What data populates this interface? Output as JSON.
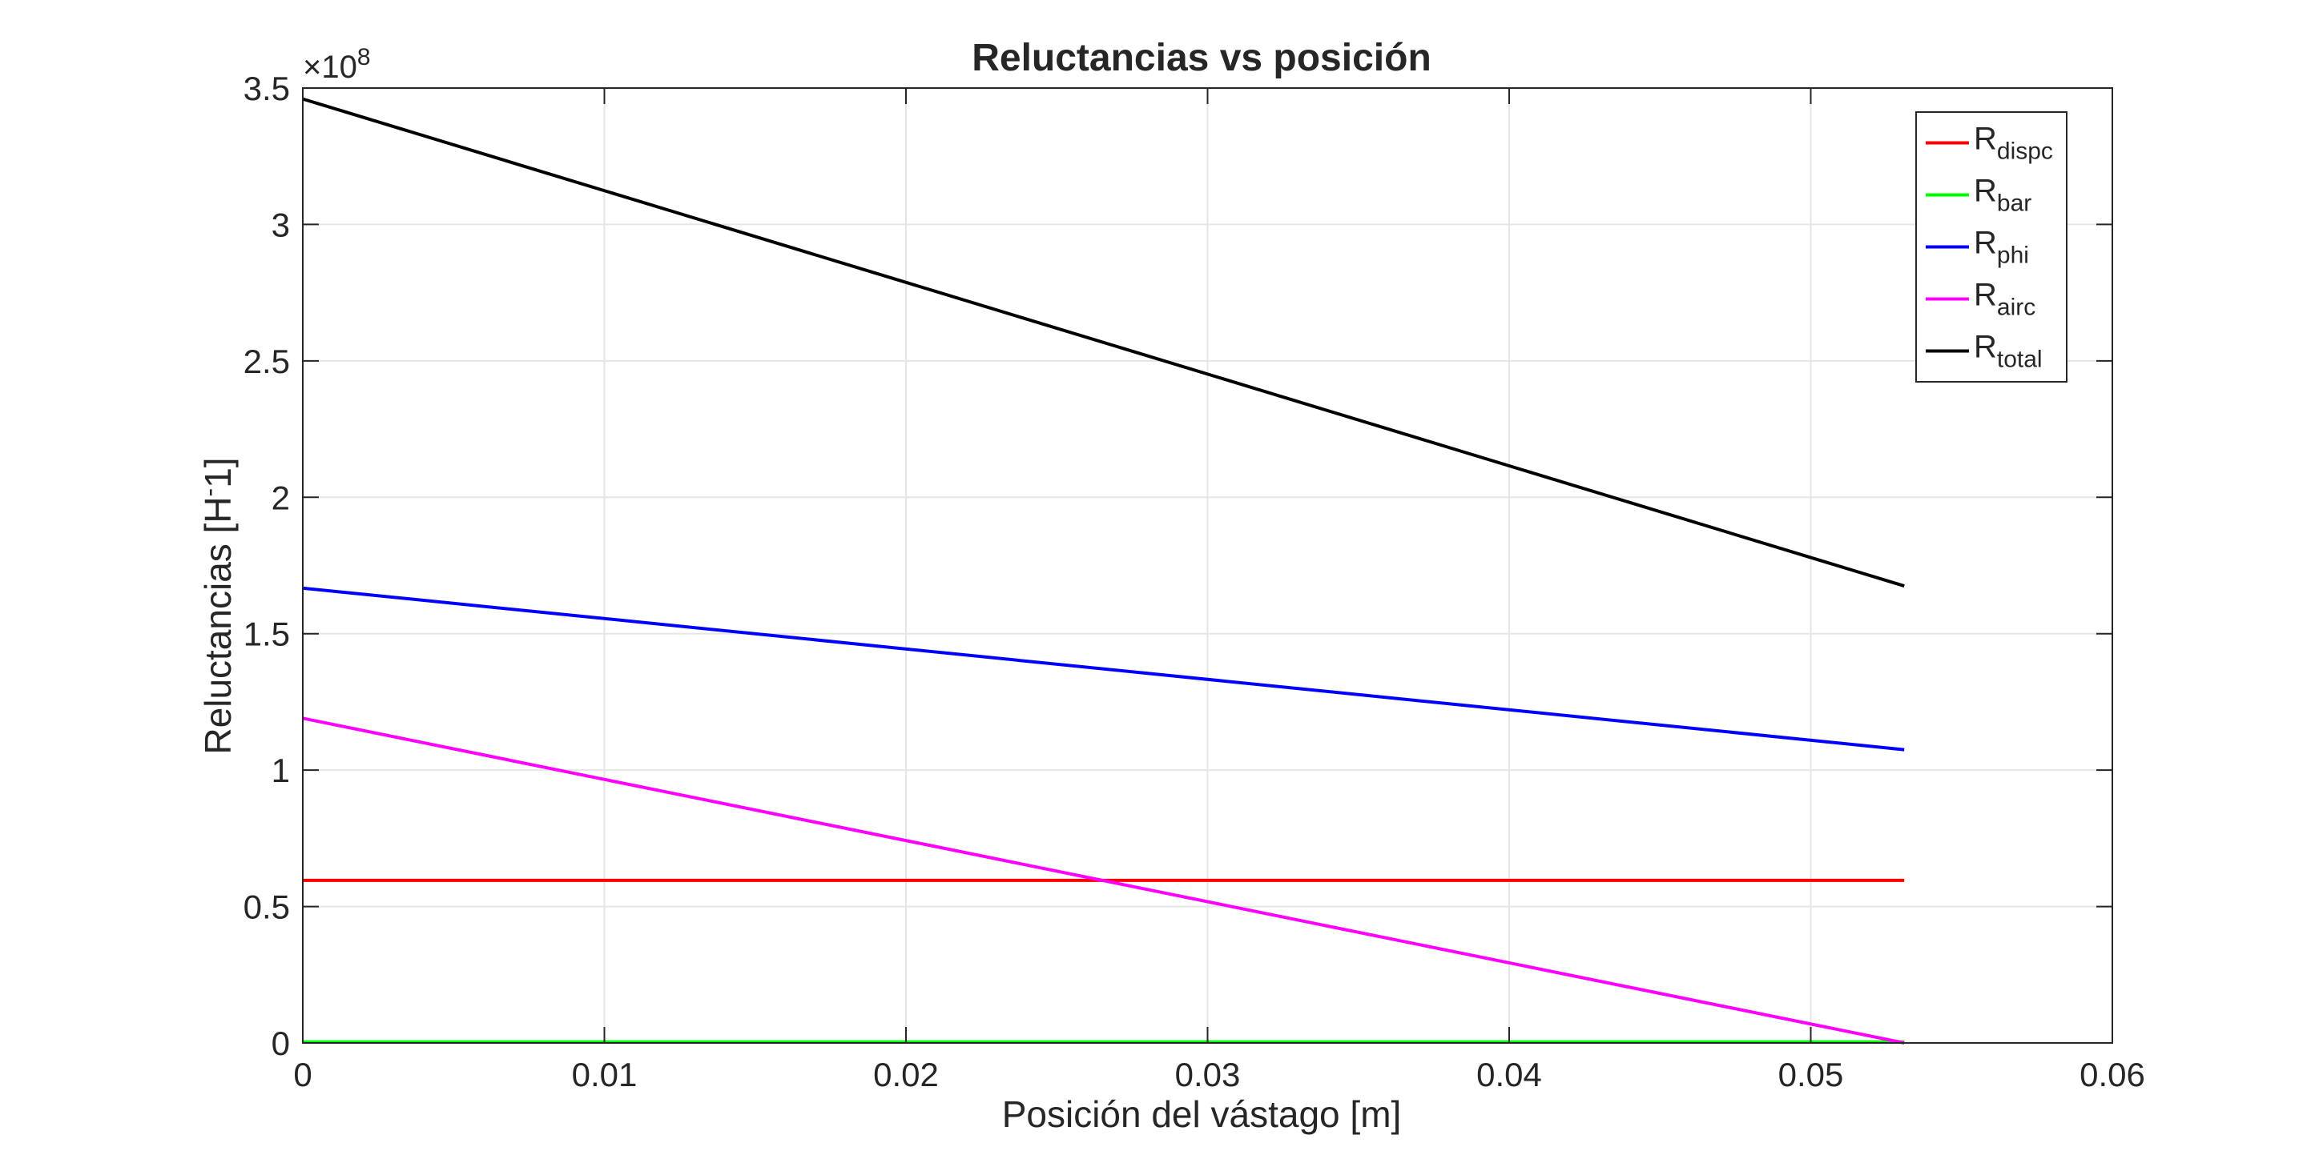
{
  "chart_data": {
    "type": "line",
    "title": "Reluctancias vs posición",
    "xlabel": "Posición del vástago [m]",
    "ylabel": "Reluctancias [H",
    "ylabel_sup": "-",
    "ylabel_tail": "1]",
    "y_exponent_prefix": "×10",
    "y_exponent": "8",
    "xlim": [
      0,
      0.06
    ],
    "ylim": [
      0,
      3.5
    ],
    "x_ticks": [
      0,
      0.01,
      0.02,
      0.03,
      0.04,
      0.05,
      0.06
    ],
    "x_tick_labels": [
      "0",
      "0.01",
      "0.02",
      "0.03",
      "0.04",
      "0.05",
      "0.06"
    ],
    "y_ticks": [
      0,
      0.5,
      1,
      1.5,
      2,
      2.5,
      3,
      3.5
    ],
    "y_tick_labels": [
      "0",
      "0.5",
      "1",
      "1.5",
      "2",
      "2.5",
      "3",
      "3.5"
    ],
    "grid": true,
    "legend_position": "top-right",
    "series": [
      {
        "name": "R",
        "sub": "dispc",
        "color": "#ff0000",
        "x": [
          0,
          0.0531
        ],
        "y": [
          0.596,
          0.596
        ]
      },
      {
        "name": "R",
        "sub": "bar",
        "color": "#00ff00",
        "x": [
          0,
          0.0531
        ],
        "y": [
          0.004,
          0.004
        ]
      },
      {
        "name": "R",
        "sub": "phi",
        "color": "#0000ff",
        "x": [
          0,
          0.0531
        ],
        "y": [
          1.667,
          1.075
        ]
      },
      {
        "name": "R",
        "sub": "airc",
        "color": "#ff00ff",
        "x": [
          0,
          0.0531
        ],
        "y": [
          1.19,
          0.0
        ]
      },
      {
        "name": "R",
        "sub": "total",
        "color": "#000000",
        "x": [
          0,
          0.0531
        ],
        "y": [
          3.46,
          1.675
        ]
      }
    ]
  }
}
